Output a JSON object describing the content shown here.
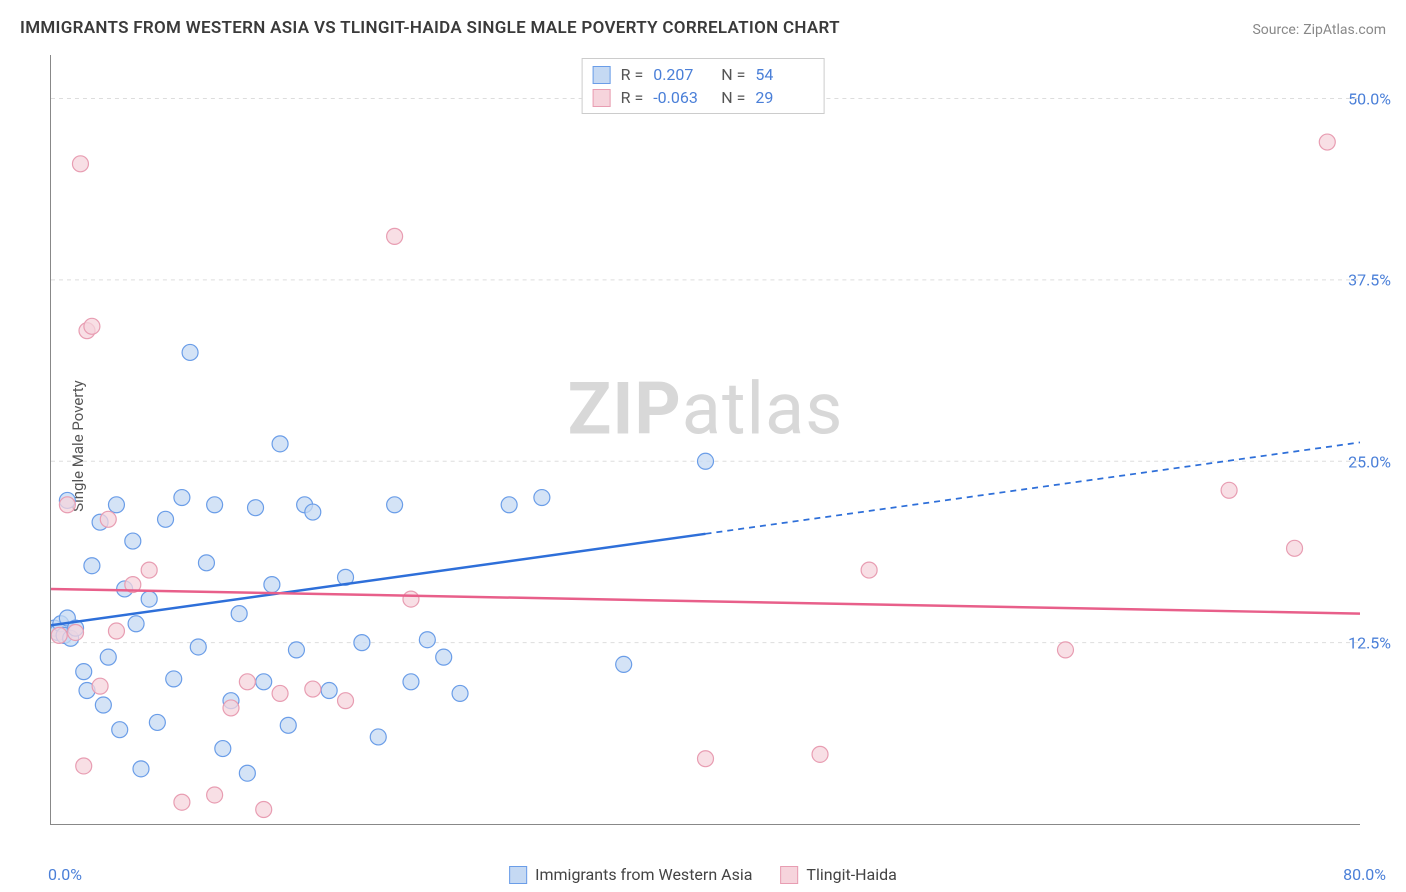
{
  "title": "IMMIGRANTS FROM WESTERN ASIA VS TLINGIT-HAIDA SINGLE MALE POVERTY CORRELATION CHART",
  "source_label": "Source:",
  "source_name": "ZipAtlas.com",
  "watermark_zip": "ZIP",
  "watermark_atlas": "atlas",
  "y_axis_label": "Single Male Poverty",
  "chart": {
    "type": "scatter",
    "xlim": [
      0,
      80
    ],
    "ylim": [
      0,
      53
    ],
    "x_ticks": [
      0,
      20,
      40,
      60,
      80
    ],
    "x_tick_labels": [
      "0.0%",
      "",
      "",
      "",
      "80.0%"
    ],
    "y_ticks": [
      12.5,
      25.0,
      37.5,
      50.0
    ],
    "y_tick_labels": [
      "12.5%",
      "25.0%",
      "37.5%",
      "50.0%"
    ],
    "grid_color": "#dddddd",
    "axis_color": "#888888",
    "background_color": "#ffffff",
    "tick_label_color": "#4a7fd8",
    "marker_radius": 8,
    "marker_stroke_width": 1.2,
    "line_width": 2.5
  },
  "series": [
    {
      "name": "Immigrants from Western Asia",
      "fill": "#c5d9f3",
      "stroke": "#6a9de8",
      "line_color": "#2e6fd9",
      "r_value": "0.207",
      "n_value": "54",
      "regression": {
        "x1": 0,
        "y1": 13.7,
        "x2_solid": 40,
        "y2_solid": 20.0,
        "x2": 80,
        "y2": 26.3
      },
      "points": [
        [
          0.2,
          13.5
        ],
        [
          0.4,
          13.2
        ],
        [
          0.6,
          13.8
        ],
        [
          0.8,
          13.0
        ],
        [
          1.0,
          14.2
        ],
        [
          1.2,
          12.8
        ],
        [
          1.5,
          13.5
        ],
        [
          1.0,
          22.3
        ],
        [
          2.0,
          10.5
        ],
        [
          2.2,
          9.2
        ],
        [
          2.5,
          17.8
        ],
        [
          3.0,
          20.8
        ],
        [
          3.2,
          8.2
        ],
        [
          3.5,
          11.5
        ],
        [
          4.0,
          22.0
        ],
        [
          4.2,
          6.5
        ],
        [
          4.5,
          16.2
        ],
        [
          5.0,
          19.5
        ],
        [
          5.2,
          13.8
        ],
        [
          5.5,
          3.8
        ],
        [
          6.0,
          15.5
        ],
        [
          6.5,
          7.0
        ],
        [
          7.0,
          21.0
        ],
        [
          7.5,
          10.0
        ],
        [
          8.0,
          22.5
        ],
        [
          8.5,
          32.5
        ],
        [
          9.0,
          12.2
        ],
        [
          9.5,
          18.0
        ],
        [
          10.0,
          22.0
        ],
        [
          10.5,
          5.2
        ],
        [
          11.0,
          8.5
        ],
        [
          11.5,
          14.5
        ],
        [
          12.0,
          3.5
        ],
        [
          12.5,
          21.8
        ],
        [
          13.0,
          9.8
        ],
        [
          13.5,
          16.5
        ],
        [
          14.0,
          26.2
        ],
        [
          14.5,
          6.8
        ],
        [
          15.0,
          12.0
        ],
        [
          15.5,
          22.0
        ],
        [
          16.0,
          21.5
        ],
        [
          17.0,
          9.2
        ],
        [
          18.0,
          17.0
        ],
        [
          19.0,
          12.5
        ],
        [
          20.0,
          6.0
        ],
        [
          21.0,
          22.0
        ],
        [
          22.0,
          9.8
        ],
        [
          23.0,
          12.7
        ],
        [
          24.0,
          11.5
        ],
        [
          25.0,
          9.0
        ],
        [
          28.0,
          22.0
        ],
        [
          30.0,
          22.5
        ],
        [
          35.0,
          11.0
        ],
        [
          40.0,
          25.0
        ]
      ]
    },
    {
      "name": "Tlingit-Haida",
      "fill": "#f6d4dc",
      "stroke": "#e89db2",
      "line_color": "#e85f8a",
      "r_value": "-0.063",
      "n_value": "29",
      "regression": {
        "x1": 0,
        "y1": 16.2,
        "x2_solid": 80,
        "y2_solid": 14.5,
        "x2": 80,
        "y2": 14.5
      },
      "points": [
        [
          0.5,
          13.0
        ],
        [
          1.0,
          22.0
        ],
        [
          1.5,
          13.2
        ],
        [
          1.8,
          45.5
        ],
        [
          2.0,
          4.0
        ],
        [
          2.2,
          34.0
        ],
        [
          2.5,
          34.3
        ],
        [
          3.0,
          9.5
        ],
        [
          3.5,
          21.0
        ],
        [
          4.0,
          13.3
        ],
        [
          5.0,
          16.5
        ],
        [
          6.0,
          17.5
        ],
        [
          8.0,
          1.5
        ],
        [
          10.0,
          2.0
        ],
        [
          11.0,
          8.0
        ],
        [
          12.0,
          9.8
        ],
        [
          13.0,
          1.0
        ],
        [
          14.0,
          9.0
        ],
        [
          16.0,
          9.3
        ],
        [
          18.0,
          8.5
        ],
        [
          21.0,
          40.5
        ],
        [
          22.0,
          15.5
        ],
        [
          40.0,
          4.5
        ],
        [
          47.0,
          4.8
        ],
        [
          50.0,
          17.5
        ],
        [
          62.0,
          12.0
        ],
        [
          72.0,
          23.0
        ],
        [
          76.0,
          19.0
        ],
        [
          78.0,
          47.0
        ]
      ]
    }
  ],
  "legend_top_label_r": "R =",
  "legend_top_label_n": "N ="
}
